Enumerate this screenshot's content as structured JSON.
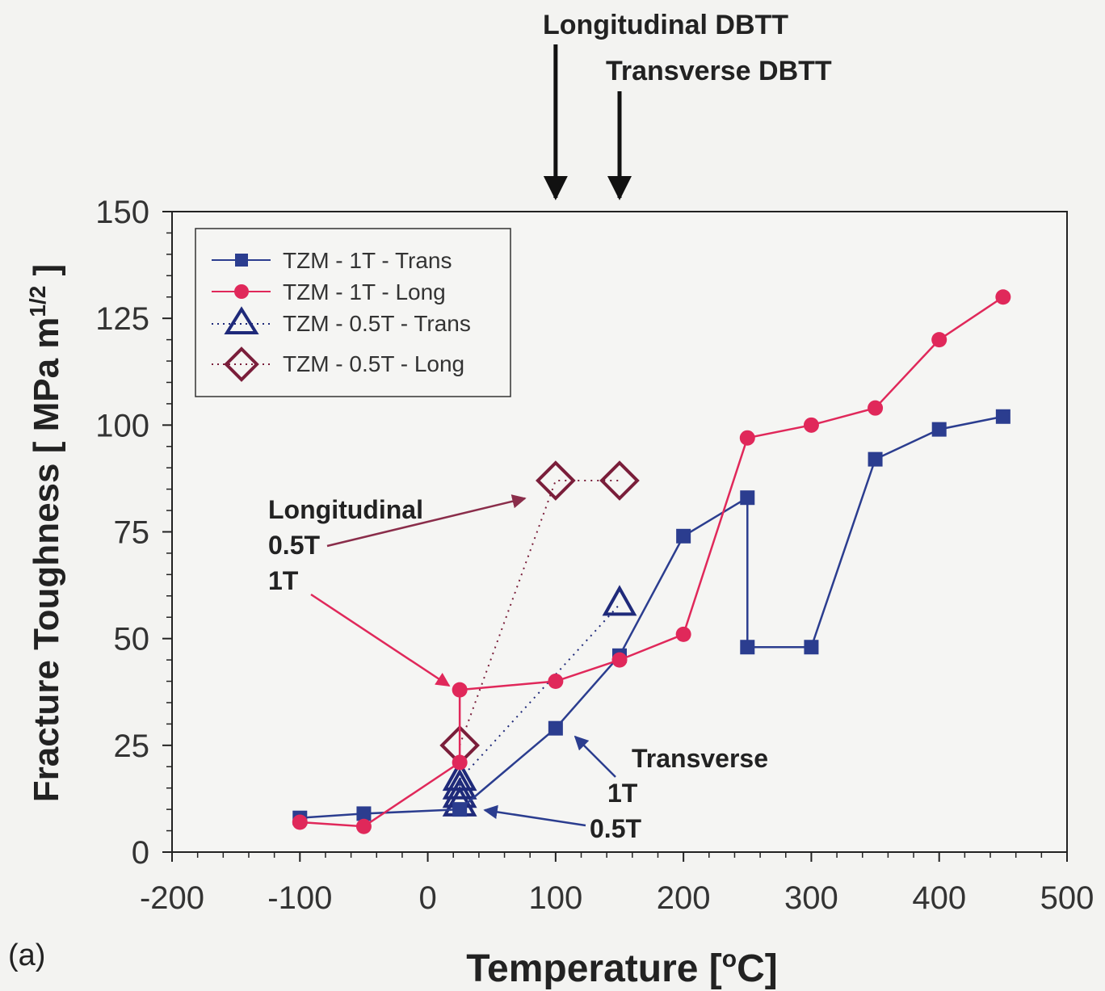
{
  "chart_data": {
    "type": "line",
    "panel_label": "(a)",
    "xlabel": "Temperature [",
    "xlabel_sup": "o",
    "xlabel_tail": "C]",
    "ylabel": "Fracture Toughness [ MPa m",
    "ylabel_sup": "1/2",
    "ylabel_tail": " ]",
    "xlim": [
      -200,
      500
    ],
    "ylim": [
      0,
      150
    ],
    "x_ticks": [
      -200,
      -100,
      0,
      100,
      200,
      300,
      400,
      500
    ],
    "y_ticks": [
      0,
      25,
      50,
      75,
      100,
      125,
      150
    ],
    "grid": false,
    "legend_position": "top-left",
    "colors": {
      "trans_1t": "#2b3d8f",
      "long_1t": "#e0285a",
      "trans_05t": "#1f2a7a",
      "long_05t": "#7a1e3a",
      "axis": "#222222",
      "annotation_long_arrow": "#8a2d4a",
      "annotation_trans_arrow": "#2b3d8f"
    },
    "series": [
      {
        "name": "TZM - 1T - Trans",
        "marker": "square",
        "line": "solid",
        "color": "#2b3d8f",
        "points": [
          [
            -100,
            8
          ],
          [
            -50,
            9
          ],
          [
            25,
            10
          ],
          [
            100,
            29
          ],
          [
            150,
            46
          ],
          [
            200,
            74
          ],
          [
            250,
            83
          ],
          [
            250,
            48
          ],
          [
            300,
            48
          ],
          [
            350,
            92
          ],
          [
            400,
            99
          ],
          [
            450,
            102
          ]
        ]
      },
      {
        "name": "TZM - 1T - Long",
        "marker": "circle",
        "line": "solid",
        "color": "#e0285a",
        "points": [
          [
            -100,
            7
          ],
          [
            -50,
            6
          ],
          [
            25,
            21
          ],
          [
            25,
            38
          ],
          [
            100,
            40
          ],
          [
            150,
            45
          ],
          [
            200,
            51
          ],
          [
            250,
            97
          ],
          [
            300,
            100
          ],
          [
            350,
            104
          ],
          [
            400,
            120
          ],
          [
            450,
            130
          ]
        ]
      },
      {
        "name": "TZM - 0.5T - Trans",
        "marker": "triangle",
        "line": "dotted",
        "color": "#1f2a7a",
        "points": [
          [
            25,
            11
          ],
          [
            25,
            13
          ],
          [
            25,
            15
          ],
          [
            25,
            17
          ],
          [
            150,
            58
          ]
        ]
      },
      {
        "name": "TZM - 0.5T - Long",
        "marker": "diamond",
        "line": "dotted",
        "color": "#7a1e3a",
        "points": [
          [
            25,
            25
          ],
          [
            100,
            87
          ],
          [
            150,
            87
          ]
        ]
      }
    ],
    "dbtt_markers": [
      {
        "label": "Longitudinal DBTT",
        "x": 100
      },
      {
        "label": "Transverse DBTT",
        "x": 150
      }
    ],
    "annotations": {
      "longitudinal": "Longitudinal",
      "long_05t": "0.5T",
      "long_1t": "1T",
      "transverse": "Transverse",
      "trans_1t": "1T",
      "trans_05t": "0.5T"
    }
  }
}
